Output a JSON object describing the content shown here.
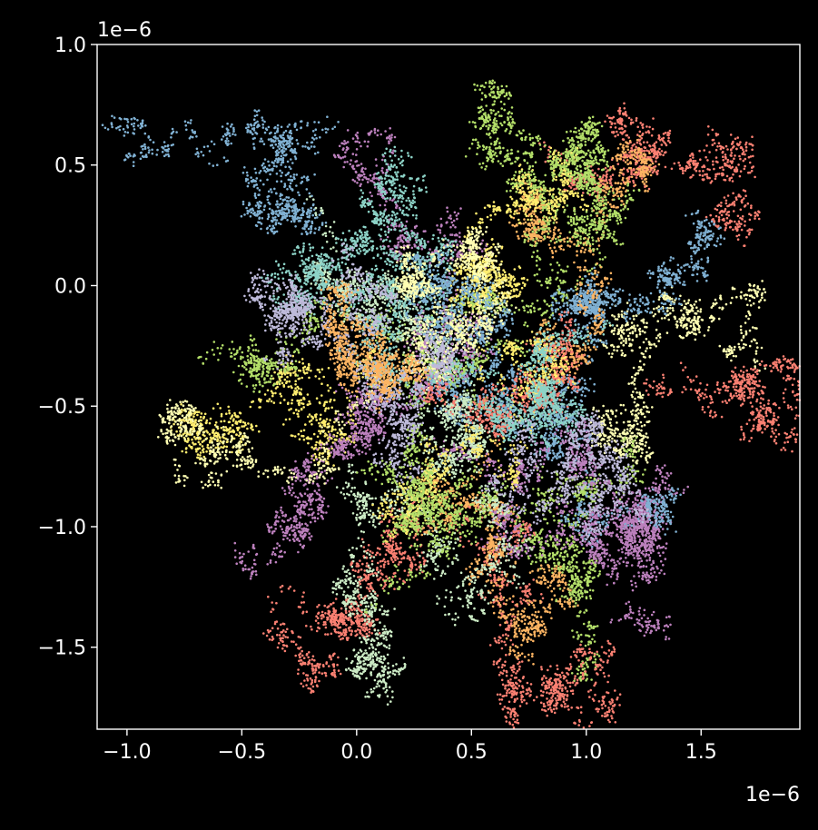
{
  "chart_data": {
    "type": "scatter",
    "title": "",
    "xlabel": "",
    "ylabel": "",
    "x_offset_text": "1e−6",
    "y_offset_text": "1e−6",
    "xlim": [
      -1.13,
      1.93
    ],
    "ylim": [
      -1.84,
      1.0
    ],
    "x_ticks": [
      -1.0,
      -0.5,
      0.0,
      0.5,
      1.0,
      1.5
    ],
    "x_tick_labels": [
      "−1.0",
      "−0.5",
      "0.0",
      "0.5",
      "1.0",
      "1.5"
    ],
    "y_ticks": [
      -1.5,
      -1.0,
      -0.5,
      0.0,
      0.5,
      1.0
    ],
    "y_tick_labels": [
      "−1.5",
      "−1.0",
      "−0.5",
      "0.0",
      "0.5",
      "1.0"
    ],
    "grid": false,
    "legend": "none",
    "background": "#000000",
    "palette": [
      "#8dd3c7",
      "#ffffb3",
      "#bebada",
      "#fb8072",
      "#80b1d3",
      "#fdb462",
      "#b3de69",
      "#bc80bd",
      "#ccebc5",
      "#ffed6f"
    ],
    "series": [
      {
        "color": "#80b1d3",
        "start": [
          -0.95,
          0.63
        ],
        "end": [
          -0.22,
          0.45
        ]
      },
      {
        "color": "#fb8072",
        "start": [
          0.85,
          0.52
        ],
        "end": [
          1.72,
          0.29
        ]
      },
      {
        "color": "#ffffb3",
        "start": [
          1.05,
          -0.52
        ],
        "end": [
          1.76,
          -0.35
        ]
      },
      {
        "color": "#fb8072",
        "start": [
          1.33,
          -0.4
        ],
        "end": [
          1.69,
          -0.58
        ]
      },
      {
        "color": "#ffed6f",
        "start": [
          0.05,
          -0.3
        ],
        "end": [
          -0.68,
          -0.67
        ]
      },
      {
        "color": "#bc80bd",
        "start": [
          0.1,
          -0.4
        ],
        "end": [
          -0.53,
          -1.1
        ]
      },
      {
        "color": "#b3de69",
        "start": [
          0.4,
          -0.2
        ],
        "end": [
          -0.6,
          -0.25
        ]
      },
      {
        "color": "#ccebc5",
        "start": [
          0.3,
          0.05
        ],
        "end": [
          -0.2,
          0.35
        ]
      },
      {
        "color": "#fb8072",
        "start": [
          0.2,
          -0.9
        ],
        "end": [
          -0.2,
          -1.68
        ]
      },
      {
        "color": "#ccebc5",
        "start": [
          0.3,
          -1.0
        ],
        "end": [
          0.15,
          -1.72
        ]
      },
      {
        "color": "#b3de69",
        "start": [
          0.7,
          -0.9
        ],
        "end": [
          0.95,
          -1.62
        ]
      },
      {
        "color": "#fb8072",
        "start": [
          0.8,
          -1.0
        ],
        "end": [
          0.82,
          -1.68
        ]
      },
      {
        "color": "#bc80bd",
        "start": [
          0.9,
          -0.9
        ],
        "end": [
          1.3,
          -1.4
        ]
      },
      {
        "color": "#b3de69",
        "start": [
          0.5,
          0.0
        ],
        "end": [
          0.65,
          0.65
        ]
      },
      {
        "color": "#bc80bd",
        "start": [
          0.3,
          -0.1
        ],
        "end": [
          0.06,
          0.62
        ]
      },
      {
        "color": "#8dd3c7",
        "start": [
          0.3,
          0.0
        ],
        "end": [
          0.28,
          0.45
        ]
      },
      {
        "color": "#80b1d3",
        "start": [
          0.9,
          -0.4
        ],
        "end": [
          1.45,
          0.3
        ]
      },
      {
        "color": "#80b1d3",
        "start": [
          1.0,
          -0.5
        ],
        "end": [
          1.35,
          -0.88
        ]
      },
      {
        "color": "#fdb462",
        "start": [
          0.8,
          -0.2
        ],
        "end": [
          1.25,
          0.4
        ]
      },
      {
        "color": "#ffffb3",
        "start": [
          0.6,
          0.0
        ],
        "end": [
          -0.75,
          -0.8
        ]
      },
      {
        "color": "#8dd3c7",
        "start": [
          0.5,
          -0.3
        ],
        "end": [
          0.1,
          0.2
        ]
      },
      {
        "color": "#bebada",
        "start": [
          0.4,
          -0.4
        ],
        "end": [
          -0.1,
          0.1
        ]
      },
      {
        "color": "#fdb462",
        "start": [
          0.6,
          -0.7
        ],
        "end": [
          0.9,
          -1.2
        ]
      },
      {
        "color": "#ffed6f",
        "start": [
          0.4,
          0.0
        ],
        "end": [
          0.95,
          0.55
        ]
      },
      {
        "color": "#b3de69",
        "start": [
          0.6,
          -0.5
        ],
        "end": [
          1.0,
          0.45
        ]
      },
      {
        "color": "#80b1d3",
        "start": [
          0.45,
          -0.55
        ],
        "end": [
          0.4,
          0.15
        ]
      },
      {
        "color": "#fb8072",
        "start": [
          0.35,
          -0.45
        ],
        "end": [
          0.85,
          -0.3
        ]
      },
      {
        "color": "#bc80bd",
        "start": [
          0.3,
          -0.65
        ],
        "end": [
          0.7,
          -1.0
        ]
      },
      {
        "color": "#ccebc5",
        "start": [
          0.5,
          -0.4
        ],
        "end": [
          0.7,
          -1.25
        ]
      },
      {
        "color": "#bebada",
        "start": [
          0.2,
          -0.55
        ],
        "end": [
          -0.4,
          -0.3
        ]
      },
      {
        "color": "#ffed6f",
        "start": [
          0.55,
          -0.25
        ],
        "end": [
          0.1,
          -0.95
        ]
      },
      {
        "color": "#8dd3c7",
        "start": [
          0.6,
          -0.45
        ],
        "end": [
          1.1,
          -0.15
        ]
      },
      {
        "color": "#fdb462",
        "start": [
          0.25,
          -0.35
        ],
        "end": [
          -0.05,
          -0.1
        ]
      },
      {
        "color": "#ffffb3",
        "start": [
          0.65,
          -0.05
        ],
        "end": [
          0.55,
          0.1
        ]
      },
      {
        "color": "#bebada",
        "start": [
          0.75,
          -0.6
        ],
        "end": [
          1.2,
          -0.8
        ]
      },
      {
        "color": "#b3de69",
        "start": [
          0.3,
          -0.85
        ],
        "end": [
          0.05,
          -1.35
        ]
      }
    ]
  }
}
